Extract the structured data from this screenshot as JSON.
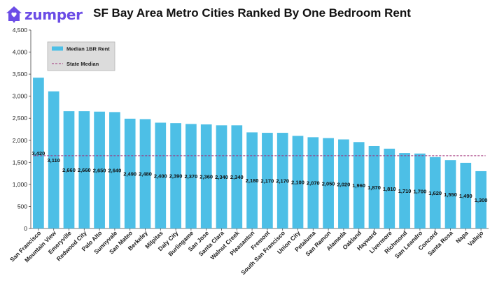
{
  "header": {
    "logo_text": "zumper",
    "logo_icon": "house-pin-icon",
    "brand_color": "#6b4ce6",
    "title": "SF Bay Area Metro Cities Ranked By One Bedroom Rent"
  },
  "chart_data": {
    "type": "bar",
    "title": "SF Bay Area Metro Cities Ranked By One Bedroom Rent",
    "xlabel": "",
    "ylabel": "",
    "ylim": [
      0,
      4500
    ],
    "yticks": [
      0,
      500,
      1000,
      1500,
      2000,
      2500,
      3000,
      3500,
      4000,
      4500
    ],
    "ytick_labels": [
      "0",
      "500",
      "1,000",
      "1,500",
      "2,000",
      "2,500",
      "3,000",
      "3,500",
      "4,000",
      "4,500"
    ],
    "grid": false,
    "legend_placement": "top-left",
    "bar_color": "#4dbfe6",
    "reference_color": "#a0307a",
    "categories": [
      "San Francisco",
      "Mountain View",
      "Emeryville",
      "Redwood City",
      "Palo Alto",
      "Sunnyvale",
      "San Mateo",
      "Berkeley",
      "Milpitas",
      "Daly City",
      "Burlingame",
      "San Jose",
      "Santa Clara",
      "Walnut Creek",
      "Pleasanton",
      "Fremont",
      "South San Francisco",
      "Union City",
      "Petaluma",
      "San Ramon",
      "Alameda",
      "Oakland",
      "Hayward",
      "Livermore",
      "Richmond",
      "San Leandro",
      "Concord",
      "Santa Rosa",
      "Napa",
      "Vallejo"
    ],
    "series": [
      {
        "name": "Median 1BR Rent",
        "values": [
          3420,
          3110,
          2660,
          2660,
          2650,
          2640,
          2490,
          2480,
          2400,
          2390,
          2370,
          2360,
          2340,
          2340,
          2180,
          2170,
          2170,
          2100,
          2070,
          2050,
          2020,
          1960,
          1870,
          1810,
          1710,
          1700,
          1620,
          1550,
          1490,
          1300
        ],
        "labels": [
          "3,420",
          "3,110",
          "2,660",
          "2,660",
          "2,650",
          "2,640",
          "2,490",
          "2,480",
          "2,400",
          "2,390",
          "2,370",
          "2,360",
          "2,340",
          "2,340",
          "2,180",
          "2,170",
          "2,170",
          "2,100",
          "2,070",
          "2,050",
          "2,020",
          "1,960",
          "1,870",
          "1,810",
          "1,710",
          "1,700",
          "1,620",
          "1,550",
          "1,490",
          "1,300"
        ]
      }
    ],
    "reference_line": {
      "name": "State Median",
      "value": 1650
    }
  }
}
